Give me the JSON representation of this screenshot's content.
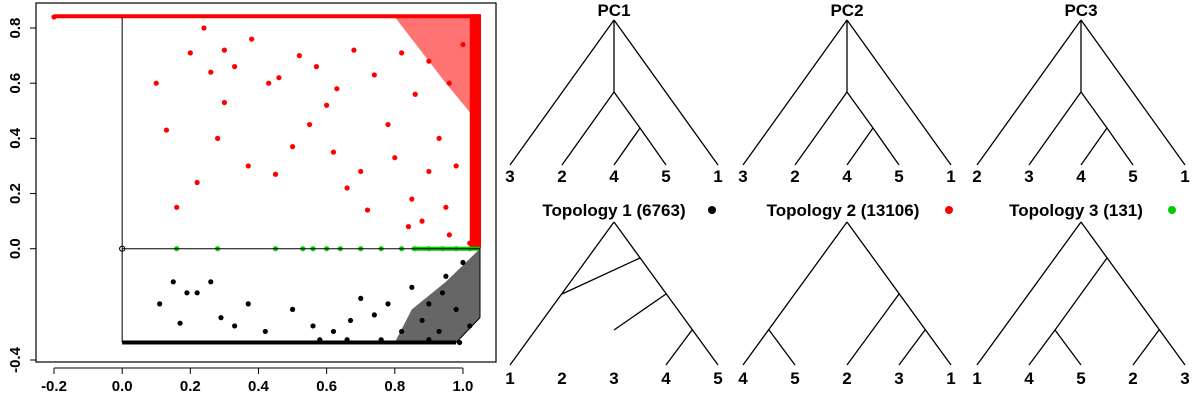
{
  "chart_data": [
    {
      "type": "scatter",
      "xlim": [
        -0.2,
        1.05
      ],
      "ylim": [
        -0.36,
        0.84
      ],
      "x_ticks": [
        "-0.2",
        "0.0",
        "0.2",
        "0.4",
        "0.6",
        "0.8",
        "1.0"
      ],
      "y_ticks": [
        "-0.4",
        "0.0",
        "0.2",
        "0.4",
        "0.6",
        "0.8"
      ],
      "grid": false,
      "series": [
        {
          "color": "#ff0000",
          "points": [
            [
              -0.2,
              0.84
            ],
            [
              0.16,
              0.15
            ],
            [
              0.22,
              0.24
            ],
            [
              0.28,
              0.4
            ],
            [
              0.13,
              0.43
            ],
            [
              0.3,
              0.53
            ],
            [
              0.37,
              0.3
            ],
            [
              0.45,
              0.27
            ],
            [
              0.5,
              0.37
            ],
            [
              0.55,
              0.45
            ],
            [
              0.6,
              0.52
            ],
            [
              0.62,
              0.35
            ],
            [
              0.7,
              0.28
            ],
            [
              0.72,
              0.14
            ],
            [
              0.66,
              0.22
            ],
            [
              0.78,
              0.45
            ],
            [
              0.8,
              0.33
            ],
            [
              0.85,
              0.18
            ],
            [
              0.88,
              0.1
            ],
            [
              0.9,
              0.28
            ],
            [
              0.93,
              0.4
            ],
            [
              0.95,
              0.15
            ],
            [
              0.98,
              0.3
            ],
            [
              0.46,
              0.62
            ],
            [
              0.52,
              0.7
            ],
            [
              0.57,
              0.66
            ],
            [
              0.63,
              0.58
            ],
            [
              0.68,
              0.72
            ],
            [
              0.74,
              0.63
            ],
            [
              0.82,
              0.71
            ],
            [
              0.86,
              0.56
            ],
            [
              0.9,
              0.68
            ],
            [
              0.96,
              0.6
            ],
            [
              1.0,
              0.74
            ],
            [
              0.3,
              0.72
            ],
            [
              0.38,
              0.76
            ],
            [
              0.43,
              0.6
            ],
            [
              0.33,
              0.66
            ],
            [
              0.24,
              0.8
            ],
            [
              0.2,
              0.71
            ],
            [
              0.1,
              0.6
            ],
            [
              0.26,
              0.64
            ],
            [
              0.84,
              0.08
            ],
            [
              0.96,
              0.05
            ],
            [
              1.02,
              0.02
            ]
          ]
        },
        {
          "color": "#00cc00",
          "points": [
            [
              0.16,
              0.0
            ],
            [
              0.28,
              0.0
            ],
            [
              0.45,
              0.0
            ],
            [
              0.53,
              0.0
            ],
            [
              0.56,
              0.0
            ],
            [
              0.6,
              0.0
            ],
            [
              0.64,
              0.0
            ],
            [
              0.7,
              0.0
            ],
            [
              0.76,
              0.0
            ],
            [
              0.82,
              0.0
            ],
            [
              0.86,
              0.0
            ],
            [
              0.9,
              0.0
            ],
            [
              0.94,
              0.0
            ],
            [
              0.98,
              0.0
            ],
            [
              1.02,
              0.0
            ]
          ]
        },
        {
          "color": "#000000",
          "points": [
            [
              0.11,
              -0.2
            ],
            [
              0.15,
              -0.12
            ],
            [
              0.17,
              -0.27
            ],
            [
              0.19,
              -0.16
            ],
            [
              0.26,
              -0.12
            ],
            [
              0.22,
              -0.16
            ],
            [
              0.29,
              -0.25
            ],
            [
              0.33,
              -0.28
            ],
            [
              0.37,
              -0.2
            ],
            [
              0.42,
              -0.3
            ],
            [
              0.5,
              -0.22
            ],
            [
              0.56,
              -0.28
            ],
            [
              0.62,
              -0.3
            ],
            [
              0.67,
              -0.26
            ],
            [
              0.7,
              -0.18
            ],
            [
              0.74,
              -0.24
            ],
            [
              0.78,
              -0.2
            ],
            [
              0.82,
              -0.3
            ],
            [
              0.85,
              -0.14
            ],
            [
              0.88,
              -0.26
            ],
            [
              0.9,
              -0.2
            ],
            [
              0.93,
              -0.3
            ],
            [
              0.95,
              -0.1
            ],
            [
              0.98,
              -0.22
            ],
            [
              1.0,
              -0.05
            ],
            [
              1.02,
              -0.28
            ],
            [
              0.9,
              -0.33
            ],
            [
              0.76,
              -0.33
            ],
            [
              0.66,
              -0.33
            ],
            [
              0.58,
              -0.33
            ],
            [
              0.94,
              -0.16
            ],
            [
              0.99,
              -0.34
            ]
          ]
        },
        {
          "color": "#ffffff",
          "stroke": "#000000",
          "points": [
            [
              0.0,
              0.0
            ]
          ]
        }
      ]
    }
  ],
  "trees": {
    "top": [
      {
        "title": "PC1",
        "leaves": [
          "3",
          "2",
          "4",
          "5",
          "1"
        ]
      },
      {
        "title": "PC2",
        "leaves": [
          "3",
          "2",
          "4",
          "5",
          "1"
        ]
      },
      {
        "title": "PC3",
        "leaves": [
          "2",
          "3",
          "4",
          "5",
          "1"
        ]
      }
    ],
    "bottom": [
      {
        "title": "Topology 1 (6763)",
        "leaves": [
          "1",
          "2",
          "3",
          "4",
          "5"
        ],
        "dot_color": "#000000"
      },
      {
        "title": "Topology 2 (13106)",
        "leaves": [
          "4",
          "5",
          "2",
          "3",
          "1"
        ],
        "dot_color": "#ff0000"
      },
      {
        "title": "Topology 3 (131)",
        "leaves": [
          "1",
          "4",
          "5",
          "2",
          "3"
        ],
        "dot_color": "#00cc00"
      }
    ]
  }
}
